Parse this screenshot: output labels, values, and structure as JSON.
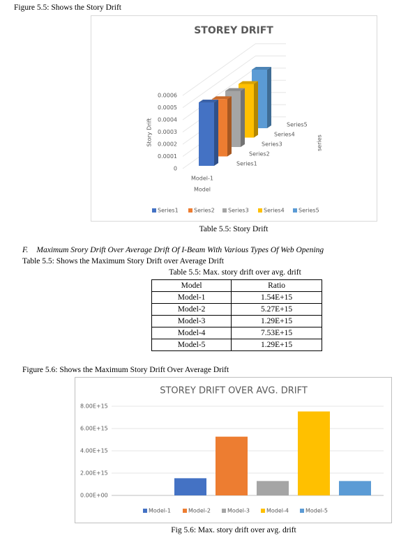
{
  "figure_5_5_caption": "Figure 5.5: Shows the Story Drift",
  "table_5_5_caption": "Table 5.5: Story Drift",
  "section": {
    "number": "F.",
    "title": "Maximum Srory Drift Over Average Drift Of I-Beam With Various Types Of Web Opening"
  },
  "table_intro": "Table 5.5: Shows the Maximum Story Drift over Average Drift",
  "table": {
    "caption": "Table 5.5: Max. story drift over avg. drift",
    "header": [
      "Model",
      "Ratio"
    ],
    "rows": [
      [
        "Model-1",
        "1.54E+15"
      ],
      [
        "Model-2",
        "5.27E+15"
      ],
      [
        "Model-3",
        "1.29E+15"
      ],
      [
        "Model-4",
        "7.53E+15"
      ],
      [
        "Model-5",
        "1.29E+15"
      ]
    ]
  },
  "figure_5_6_caption": "Figure 5.6: Shows the Maximum Story Drift Over Average Drift",
  "figure_5_6_label": "Fig 5.6: Max. story drift over avg. drift",
  "chart_data": [
    {
      "type": "bar3d",
      "title": "STOREY DRIFT",
      "y_label": "Story Drift",
      "x_label": "Model",
      "z_label": "series",
      "categories": [
        "Model-1"
      ],
      "series": [
        {
          "name": "Series1",
          "color": "#4472c4",
          "values": [
            0.00052
          ]
        },
        {
          "name": "Series2",
          "color": "#ed7d31",
          "values": [
            0.00047
          ]
        },
        {
          "name": "Series3",
          "color": "#a5a5a5",
          "values": [
            0.00046
          ]
        },
        {
          "name": "Series4",
          "color": "#ffc000",
          "values": [
            0.00044
          ]
        },
        {
          "name": "Series5",
          "color": "#5b9bd5",
          "values": [
            0.00048
          ]
        }
      ],
      "ylim": [
        0,
        0.0006
      ],
      "yticks": [
        0,
        0.0001,
        0.0002,
        0.0003,
        0.0004,
        0.0005,
        0.0006
      ],
      "grid": true,
      "legend": "bottom"
    },
    {
      "type": "bar",
      "title": "STOREY DRIFT OVER AVG. DRIFT",
      "categories": [
        null
      ],
      "series": [
        {
          "name": "Model-1",
          "color": "#4472c4",
          "values": [
            1540000000000000.0
          ]
        },
        {
          "name": "Model-2",
          "color": "#ed7d31",
          "values": [
            5270000000000000.0
          ]
        },
        {
          "name": "Model-3",
          "color": "#a5a5a5",
          "values": [
            1290000000000000.0
          ]
        },
        {
          "name": "Model-4",
          "color": "#ffc000",
          "values": [
            7530000000000000.0
          ]
        },
        {
          "name": "Model-5",
          "color": "#5b9bd5",
          "values": [
            1290000000000000.0
          ]
        }
      ],
      "ylim": [
        0,
        8000000000000000.0
      ],
      "yticks": [
        {
          "value": 0,
          "label": "0.00E+00"
        },
        {
          "value": 2000000000000000.0,
          "label": "2.00E+15"
        },
        {
          "value": 4000000000000000.0,
          "label": "4.00E+15"
        },
        {
          "value": 6000000000000000.0,
          "label": "6.00E+15"
        },
        {
          "value": 8000000000000000.0,
          "label": "8.00E+15"
        }
      ],
      "grid": true,
      "legend": "bottom"
    }
  ]
}
